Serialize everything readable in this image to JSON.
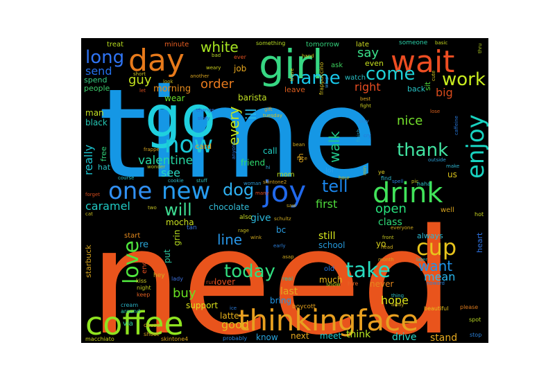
{
  "words": [
    {
      "text": "time",
      "color": "#1597e5"
    },
    {
      "text": "need",
      "color": "#e9541c"
    },
    {
      "text": "go",
      "color": "#1fd0de"
    },
    {
      "text": "girl",
      "color": "#37d783"
    },
    {
      "text": "day",
      "color": "#e77a1b"
    },
    {
      "text": "wait",
      "color": "#ed4d22"
    },
    {
      "text": "coffee",
      "color": "#8fe320"
    },
    {
      "text": "thinkingface",
      "color": "#e8a020"
    },
    {
      "text": "drink",
      "color": "#41e35a"
    },
    {
      "text": "joy",
      "color": "#2169ec"
    },
    {
      "text": "enjoy",
      "color": "#18d2c0"
    },
    {
      "text": "now",
      "color": "#19c9d8"
    },
    {
      "text": "new",
      "color": "#279cf0"
    },
    {
      "text": "one",
      "color": "#3190f3"
    },
    {
      "text": "love",
      "color": "#50e63d"
    },
    {
      "text": "long",
      "color": "#2f74f4"
    },
    {
      "text": "thank",
      "color": "#41e3a1"
    },
    {
      "text": "work",
      "color": "#c9ec1f"
    },
    {
      "text": "come",
      "color": "#1fd0d6"
    },
    {
      "text": "name",
      "color": "#18c6e7"
    },
    {
      "text": "cup",
      "color": "#e8c41c"
    },
    {
      "text": "take",
      "color": "#28dcc0"
    },
    {
      "text": "today",
      "color": "#31de7f"
    },
    {
      "text": "dog",
      "color": "#2fb1f2"
    },
    {
      "text": "tell",
      "color": "#1b86ec"
    },
    {
      "text": "white",
      "color": "#a8e722"
    },
    {
      "text": "will",
      "color": "#3edd92"
    },
    {
      "text": "valentine",
      "color": "#26d7a2"
    },
    {
      "text": "say",
      "color": "#3ae28b"
    },
    {
      "text": "walk",
      "color": "#22c98b"
    },
    {
      "text": "nice",
      "color": "#74e02c"
    },
    {
      "text": "every",
      "color": "#c6e91e"
    },
    {
      "text": "ill",
      "color": "#2ab9e5"
    },
    {
      "text": "want",
      "color": "#1f93ea"
    },
    {
      "text": "order",
      "color": "#e97b1e"
    },
    {
      "text": "guy",
      "color": "#c5e41e"
    },
    {
      "text": "send",
      "color": "#2471ec"
    },
    {
      "text": "really",
      "color": "#1cc3cf"
    },
    {
      "text": "see",
      "color": "#2bd6c0"
    },
    {
      "text": "caramel",
      "color": "#20c9c4"
    },
    {
      "text": "open",
      "color": "#27e07c"
    },
    {
      "text": "first",
      "color": "#4fdb3c"
    },
    {
      "text": "buy",
      "color": "#6ae022"
    },
    {
      "text": "line",
      "color": "#2796e8"
    },
    {
      "text": "mean",
      "color": "#29b9f0"
    },
    {
      "text": "hope",
      "color": "#dbe31c"
    },
    {
      "text": "good",
      "color": "#e6bd1d"
    },
    {
      "text": "right",
      "color": "#e84c21"
    },
    {
      "text": "big",
      "color": "#d94b1c"
    },
    {
      "text": "morning",
      "color": "#e88c1d"
    },
    {
      "text": "job",
      "color": "#e8a71f"
    },
    {
      "text": "barista",
      "color": "#c1e024"
    },
    {
      "text": "give",
      "color": "#2bb5d8"
    },
    {
      "text": "mocha",
      "color": "#c9e01f"
    },
    {
      "text": "still",
      "color": "#d8e81e"
    },
    {
      "text": "much",
      "color": "#e8b71c"
    },
    {
      "text": "class",
      "color": "#2fdc79"
    },
    {
      "text": "last",
      "color": "#e6a81f"
    },
    {
      "text": "never",
      "color": "#e5871d"
    },
    {
      "text": "drive",
      "color": "#2bd8c9"
    },
    {
      "text": "stand",
      "color": "#e8ab1f"
    },
    {
      "text": "think",
      "color": "#b8e722"
    },
    {
      "text": "know",
      "color": "#2aa5dc"
    },
    {
      "text": "next",
      "color": "#e7a91f"
    },
    {
      "text": "meet",
      "color": "#1ecfd3"
    },
    {
      "text": "support",
      "color": "#dbe21c"
    },
    {
      "text": "latte",
      "color": "#e8b21d"
    },
    {
      "text": "bring",
      "color": "#2196e7"
    },
    {
      "text": "chocolate",
      "color": "#33bdd9"
    },
    {
      "text": "friend",
      "color": "#2fdc6f"
    },
    {
      "text": "call",
      "color": "#21d0c4"
    },
    {
      "text": "card",
      "color": "#e8a31f"
    },
    {
      "text": "wear",
      "color": "#69df2a"
    },
    {
      "text": "black",
      "color": "#25c8b6"
    },
    {
      "text": "man",
      "color": "#c1df23"
    },
    {
      "text": "people",
      "color": "#3dcf6e"
    },
    {
      "text": "spend",
      "color": "#38cf85"
    },
    {
      "text": "treat",
      "color": "#b9dd1f"
    },
    {
      "text": "minute",
      "color": "#e75f23"
    },
    {
      "text": "even",
      "color": "#c6e01e"
    },
    {
      "text": "watch",
      "color": "#29bfc4"
    },
    {
      "text": "back",
      "color": "#27c4c6"
    },
    {
      "text": "leave",
      "color": "#d95b1e"
    },
    {
      "text": "sit",
      "color": "#4ed83a"
    },
    {
      "text": "ask",
      "color": "#3cd25e"
    },
    {
      "text": "late",
      "color": "#d0df22"
    },
    {
      "text": "someone",
      "color": "#2bd0a9"
    },
    {
      "text": "basic",
      "color": "#c8db20"
    },
    {
      "text": "tomorrow",
      "color": "#33d07a"
    },
    {
      "text": "something",
      "color": "#b8dc22"
    },
    {
      "text": "ever",
      "color": "#e04f20"
    },
    {
      "text": "bad",
      "color": "#b9d828"
    },
    {
      "text": "also",
      "color": "#c5d622"
    },
    {
      "text": "oh",
      "color": "#d8a11e"
    },
    {
      "text": "hat",
      "color": "#2bc2c3"
    },
    {
      "text": "free",
      "color": "#2fd07a"
    },
    {
      "text": "re",
      "color": "#2aa6d8"
    },
    {
      "text": "start",
      "color": "#e48a1f"
    },
    {
      "text": "put",
      "color": "#2ec9a0"
    },
    {
      "text": "grin",
      "color": "#b6dc20"
    },
    {
      "text": "lover",
      "color": "#e9501f"
    },
    {
      "text": "yo",
      "color": "#d7d11d"
    },
    {
      "text": "school",
      "color": "#2598d9"
    },
    {
      "text": "via",
      "color": "#2fd4a4"
    },
    {
      "text": "always",
      "color": "#2bb8d3"
    },
    {
      "text": "heart",
      "color": "#2f74e4"
    },
    {
      "text": "starbuck",
      "color": "#d3a21d"
    },
    {
      "text": "end",
      "color": "#e04d1f"
    },
    {
      "text": "mom",
      "color": "#b8da20"
    },
    {
      "text": "well",
      "color": "#d5a11e"
    },
    {
      "text": "us",
      "color": "#dbc41c"
    },
    {
      "text": "lol",
      "color": "#2b9ee8"
    },
    {
      "text": "bc",
      "color": "#2a9ee2"
    },
    {
      "text": "lady",
      "color": "#3c6fdc"
    },
    {
      "text": "run",
      "color": "#d64a1d"
    },
    {
      "text": "real",
      "color": "#2ac3a8"
    },
    {
      "text": "hire",
      "color": "#e36524"
    },
    {
      "text": "show",
      "color": "#b6d124"
    },
    {
      "text": "old",
      "color": "#2777de"
    },
    {
      "text": "hey",
      "color": "#d2b020"
    },
    {
      "text": "kiss",
      "color": "#d5d124"
    },
    {
      "text": "night",
      "color": "#c3cb21"
    },
    {
      "text": "keep",
      "color": "#dc5e21"
    },
    {
      "text": "cream",
      "color": "#2ab2c5"
    },
    {
      "text": "around",
      "color": "#2dd1b1"
    },
    {
      "text": "cause",
      "color": "#e0a522"
    },
    {
      "text": "shoot",
      "color": "#d5a41f"
    },
    {
      "text": "skintone4",
      "color": "#d6a41e"
    },
    {
      "text": "probably",
      "color": "#2a86dc"
    },
    {
      "text": "boycott",
      "color": "#e3a11e"
    },
    {
      "text": "macchiato",
      "color": "#c9d21e"
    },
    {
      "text": "tan",
      "color": "#3b76dd"
    },
    {
      "text": "beautiful",
      "color": "#e4c01e"
    },
    {
      "text": "please",
      "color": "#db7a1e"
    },
    {
      "text": "spot",
      "color": "#b9d524"
    },
    {
      "text": "stop",
      "color": "#2b82db"
    },
    {
      "text": "mean2",
      "color": "#2b8ed0"
    },
    {
      "text": "noward",
      "color": "#2a82d8"
    },
    {
      "text": "hot",
      "color": "#cbd622"
    },
    {
      "text": "later",
      "color": "#2eb5b4"
    },
    {
      "text": "month",
      "color": "#d3a320"
    },
    {
      "text": "head",
      "color": "#d3b31d"
    },
    {
      "text": "front",
      "color": "#c4c422"
    },
    {
      "text": "everyone",
      "color": "#d1aa1e"
    },
    {
      "text": "haha",
      "color": "#2bc2c3"
    },
    {
      "text": "find",
      "color": "#2fbad0"
    },
    {
      "text": "ye",
      "color": "#e2d224"
    },
    {
      "text": "hour",
      "color": "#c5ba21"
    },
    {
      "text": "min",
      "color": "#c4b81e"
    },
    {
      "text": "thing",
      "color": "#2ec2c9"
    },
    {
      "text": "away",
      "color": "#c6a524"
    },
    {
      "text": "fight",
      "color": "#c6c620"
    },
    {
      "text": "best",
      "color": "#e1a820"
    },
    {
      "text": "lose",
      "color": "#db611e"
    },
    {
      "text": "caffeine",
      "color": "#2777d8"
    },
    {
      "text": "outside",
      "color": "#2aa0d8"
    },
    {
      "text": "make",
      "color": "#2fb5d0"
    },
    {
      "text": "pic",
      "color": "#c9c822"
    },
    {
      "text": "spell",
      "color": "#2b7bd6"
    },
    {
      "text": "play",
      "color": "#2e86d3"
    },
    {
      "text": "cry",
      "color": "#2b78d7"
    },
    {
      "text": "finish",
      "color": "#2ba9cc"
    },
    {
      "text": "frappuccino",
      "color": "#d6c321"
    },
    {
      "text": "whip",
      "color": "#2e8fd6"
    },
    {
      "text": "cute",
      "color": "#d4c31e"
    },
    {
      "text": "thru",
      "color": "#b1cd22"
    },
    {
      "text": "hand",
      "color": "#d0c71e"
    },
    {
      "text": "there",
      "color": "#d0c320"
    },
    {
      "text": "weary",
      "color": "#cfd41f"
    },
    {
      "text": "another",
      "color": "#d9a420"
    },
    {
      "text": "short",
      "color": "#c8c021"
    },
    {
      "text": "let",
      "color": "#da4d1f"
    },
    {
      "text": "change",
      "color": "#2b6cdc"
    },
    {
      "text": "story",
      "color": "#2c6bd4"
    },
    {
      "text": "gift",
      "color": "#e3a31f"
    },
    {
      "text": "tuesday",
      "color": "#d8c01f"
    },
    {
      "text": "anyone",
      "color": "#2f7be0"
    },
    {
      "text": "hi",
      "color": "#2ba6d6"
    },
    {
      "text": "bean",
      "color": "#d4ac1e"
    },
    {
      "text": "face",
      "color": "#d4a120"
    },
    {
      "text": "skintone2",
      "color": "#d4a020"
    },
    {
      "text": "frappe",
      "color": "#d6a31f"
    },
    {
      "text": "wonder",
      "color": "#b6c222"
    },
    {
      "text": "cookie",
      "color": "#2cb7c7"
    },
    {
      "text": "stuff",
      "color": "#2fc2c0"
    },
    {
      "text": "woman",
      "color": "#2c98d2"
    },
    {
      "text": "course",
      "color": "#2ac0c3"
    },
    {
      "text": "forget",
      "color": "#d84d1e"
    },
    {
      "text": "cat",
      "color": "#c8be20"
    },
    {
      "text": "two",
      "color": "#c2c024"
    },
    {
      "text": "many",
      "color": "#e24d21"
    },
    {
      "text": "saw",
      "color": "#c8a721"
    },
    {
      "text": "schultz",
      "color": "#c8a621"
    },
    {
      "text": "wink",
      "color": "#c8a21e"
    },
    {
      "text": "rage",
      "color": "#cdbf20"
    },
    {
      "text": "early",
      "color": "#2c7ed8"
    },
    {
      "text": "asap",
      "color": "#d2ab20"
    },
    {
      "text": "ice",
      "color": "#2b7cda"
    },
    {
      "text": "look",
      "color": "#c7b821"
    }
  ]
}
